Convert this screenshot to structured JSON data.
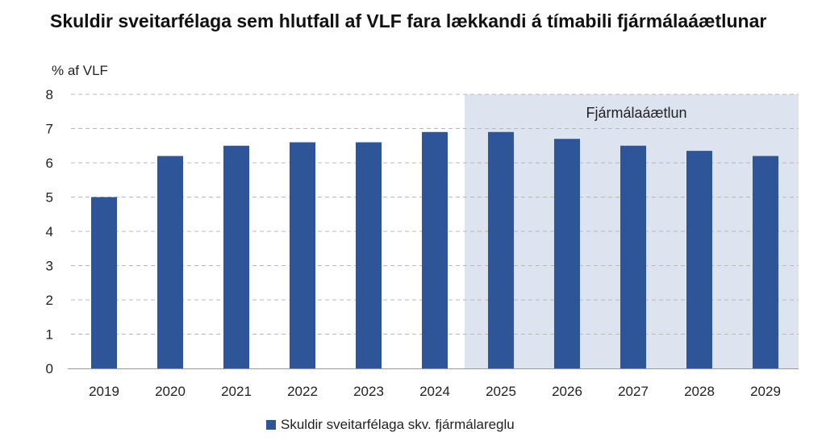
{
  "title": "Skuldir sveitarfélaga sem hlutfall af VLF fara lækkandi á tímabili fjármálaáætlunar",
  "unit_label": "% af VLF",
  "colors": {
    "bar": "#2e5597",
    "forecast_shade": "#dde3ef",
    "grid": "#b8b8b8",
    "axis": "#999999",
    "text": "#222222"
  },
  "chart_data": {
    "type": "bar",
    "title": "Skuldir sveitarfélaga sem hlutfall af VLF fara lækkandi á tímabili fjármálaáætlunar",
    "ylabel": "% af VLF",
    "xlabel": "",
    "ylim": [
      0,
      8
    ],
    "yticks": [
      0,
      1,
      2,
      3,
      4,
      5,
      6,
      7,
      8
    ],
    "grid": true,
    "categories": [
      "2019",
      "2020",
      "2021",
      "2022",
      "2023",
      "2024",
      "2025",
      "2026",
      "2027",
      "2028",
      "2029"
    ],
    "series": [
      {
        "name": "Skuldir sveitarfélaga skv. fjármálareglu",
        "values": [
          5.0,
          6.2,
          6.5,
          6.6,
          6.6,
          6.9,
          6.9,
          6.7,
          6.5,
          6.35,
          6.2
        ]
      }
    ],
    "shaded_region": {
      "label": "Fjármálaáætlun",
      "from_category": "2025",
      "to_category": "2029"
    },
    "legend_position": "bottom"
  }
}
